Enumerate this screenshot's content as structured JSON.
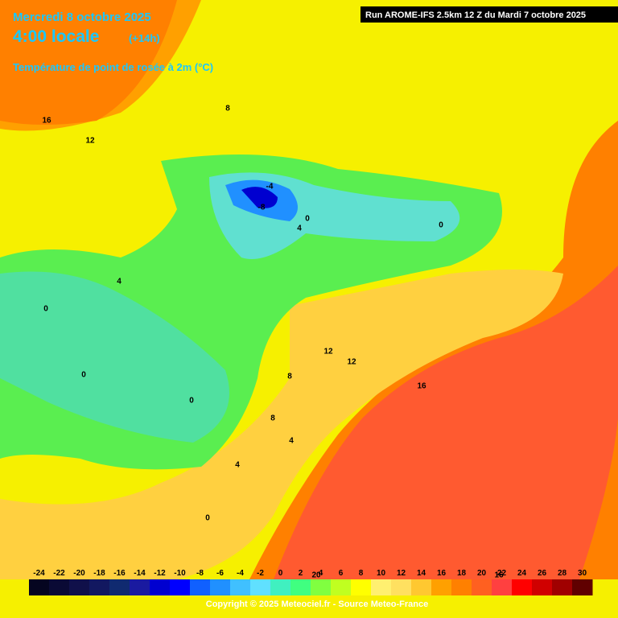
{
  "header": {
    "date": "Mercredi 8 octobre 2025",
    "time": "4:00 locale",
    "lead": "(+14h)",
    "parameter": "Température de point de rosée à 2m (°C)",
    "run": "Run AROME-IFS 2.5km 12 Z du Mardi 7 octobre 2025"
  },
  "contour_labels": [
    "16",
    "12",
    "8",
    "-4",
    "-8",
    "0",
    "4",
    "0",
    "4",
    "0",
    "0",
    "0",
    "12",
    "12",
    "16",
    "8",
    "8",
    "4",
    "4",
    "0",
    "20",
    "16"
  ],
  "legend": {
    "labels": [
      -24,
      -22,
      -20,
      -18,
      -16,
      -14,
      -12,
      -10,
      -8,
      -6,
      -4,
      -2,
      0,
      2,
      4,
      6,
      8,
      10,
      12,
      14,
      16,
      18,
      20,
      22,
      24,
      26,
      28,
      30
    ],
    "colors": [
      "#050520",
      "#0a0a35",
      "#10104a",
      "#121860",
      "#102a70",
      "#1a1aa0",
      "#0000d0",
      "#0000ff",
      "#1060ff",
      "#2090ff",
      "#40c0ff",
      "#60e0ff",
      "#40f0c0",
      "#40ff80",
      "#80ff40",
      "#c0ff20",
      "#ffff00",
      "#fff070",
      "#ffe060",
      "#ffc830",
      "#ffa000",
      "#ff8000",
      "#ff6020",
      "#ff4040",
      "#ff0000",
      "#d00000",
      "#a00000",
      "#600000"
    ]
  },
  "footer": "Copyright © 2025 Meteociel.fr - Source Meteo-France"
}
